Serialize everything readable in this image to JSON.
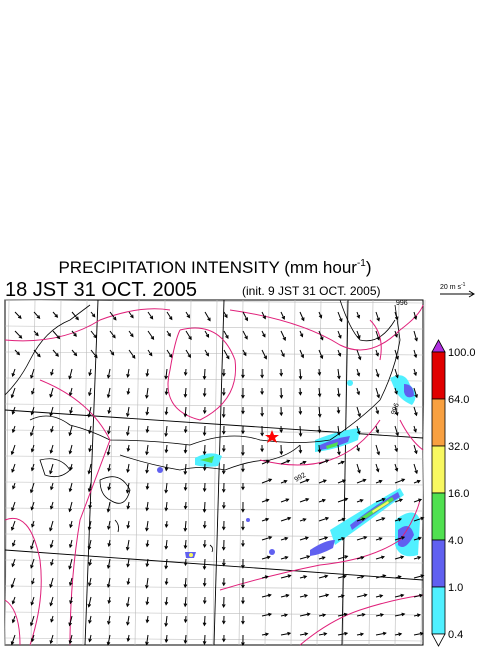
{
  "header": {
    "title": "PRECIPITATION INTENSITY (mm hour",
    "title_superscript": "-1",
    "title_end": ")",
    "valid_time": "18 JST 31 OCT. 2005",
    "init_time": "(init. 9 JST 31 OCT. 2005)"
  },
  "vector_scale": {
    "label": "20 m s",
    "superscript": "-1"
  },
  "colorbar": {
    "labels": [
      "100.0",
      "64.0",
      "32.0",
      "16.0",
      "4.0",
      "1.0",
      "0.4"
    ],
    "over_color": "#b030e0",
    "colors": [
      "#e00000",
      "#f8a040",
      "#f8f860",
      "#50e050",
      "#6060f0",
      "#50f0ff"
    ],
    "under_color": "#ffffff"
  },
  "contour_labels": [
    "996",
    "992",
    "996"
  ]
}
